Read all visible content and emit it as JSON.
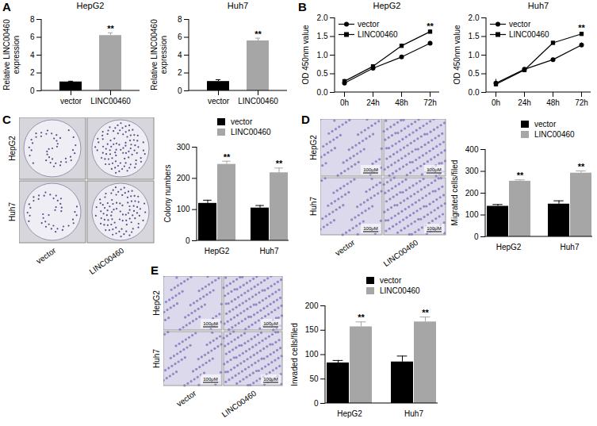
{
  "chart_data": [
    {
      "panel": "A",
      "type": "bar",
      "title": "HepG2",
      "y_label": "Relative LINC00460 expression",
      "categories": [
        "vector",
        "LINC00460"
      ],
      "values": [
        1.0,
        6.2
      ],
      "errors": [
        0.08,
        0.3
      ],
      "colors": [
        "#000000",
        "#a6a6a6"
      ],
      "ylim": [
        0,
        8
      ],
      "yticks": [
        0,
        2,
        4,
        6,
        8
      ],
      "annotations": [
        {
          "category": "LINC00460",
          "text": "**"
        }
      ]
    },
    {
      "panel": "A",
      "type": "bar",
      "title": "Huh7",
      "y_label": "Relative LINC00460 expression",
      "categories": [
        "vector",
        "LINC00460"
      ],
      "values": [
        1.05,
        5.6
      ],
      "errors": [
        0.2,
        0.3
      ],
      "colors": [
        "#000000",
        "#a6a6a6"
      ],
      "ylim": [
        0,
        8
      ],
      "yticks": [
        0,
        2,
        4,
        6,
        8
      ],
      "annotations": [
        {
          "category": "LINC00460",
          "text": "**"
        }
      ]
    },
    {
      "panel": "B",
      "type": "line",
      "title": "HepG2",
      "y_label": "OD 450nm value",
      "categories": [
        "0h",
        "24h",
        "48h",
        "72h"
      ],
      "series": [
        {
          "name": "vector",
          "color": "#000000",
          "marker": "circle",
          "values": [
            0.25,
            0.65,
            0.95,
            1.32
          ],
          "errors": [
            0.06,
            0.03,
            0.05,
            0.05
          ]
        },
        {
          "name": "LINC00460",
          "color": "#000000",
          "marker": "square",
          "values": [
            0.3,
            0.7,
            1.25,
            1.63
          ],
          "errors": [
            0.05,
            0.03,
            0.05,
            0.04
          ]
        }
      ],
      "ylim": [
        0,
        2
      ],
      "yticks": [
        {
          "value": 0,
          "label": "0.0"
        },
        {
          "value": 0.5,
          "label": "0.5"
        },
        {
          "value": 1,
          "label": "1.0"
        },
        {
          "value": 1.5,
          "label": "1.5"
        },
        {
          "value": 2,
          "label": "2.0"
        }
      ],
      "legend": "top-left",
      "annotations": [
        {
          "category": "72h",
          "text": "**"
        }
      ]
    },
    {
      "panel": "B",
      "type": "line",
      "title": "Huh7",
      "y_label": "OD 450nm value",
      "categories": [
        "0h",
        "24h",
        "48h",
        "72h"
      ],
      "series": [
        {
          "name": "vector",
          "color": "#000000",
          "marker": "circle",
          "values": [
            0.25,
            0.62,
            0.88,
            1.27
          ],
          "errors": [
            0.1,
            0.03,
            0.04,
            0.06
          ]
        },
        {
          "name": "LINC00460",
          "color": "#000000",
          "marker": "square",
          "values": [
            0.22,
            0.6,
            1.33,
            1.57
          ],
          "errors": [
            0.05,
            0.03,
            0.04,
            0.04
          ]
        }
      ],
      "ylim": [
        0,
        2
      ],
      "yticks": [
        {
          "value": 0,
          "label": "0.0"
        },
        {
          "value": 0.5,
          "label": "0.5"
        },
        {
          "value": 1,
          "label": "1.0"
        },
        {
          "value": 1.5,
          "label": "1.5"
        },
        {
          "value": 2,
          "label": "2.0"
        }
      ],
      "legend": "top-left",
      "annotations": [
        {
          "category": "72h",
          "text": "**"
        }
      ]
    },
    {
      "panel": "C",
      "type": "bar",
      "y_label": "Colony numbers",
      "categories": [
        "HepG2",
        "Huh7"
      ],
      "series": [
        {
          "name": "vector",
          "color": "#000000",
          "values": [
            120,
            105
          ],
          "errors": [
            10,
            8
          ]
        },
        {
          "name": "LINC00460",
          "color": "#a6a6a6",
          "values": [
            245,
            218
          ],
          "errors": [
            10,
            15
          ]
        }
      ],
      "ylim": [
        0,
        300
      ],
      "yticks": [
        0,
        100,
        200,
        300
      ],
      "legend": "top-right",
      "annotations": [
        {
          "category": "HepG2",
          "series": "LINC00460",
          "text": "**"
        },
        {
          "category": "Huh7",
          "series": "LINC00460",
          "text": "**"
        }
      ]
    },
    {
      "panel": "D",
      "type": "bar",
      "y_label": "Migrated cells/filed",
      "categories": [
        "HepG2",
        "Huh7"
      ],
      "series": [
        {
          "name": "vector",
          "color": "#000000",
          "values": [
            140,
            150
          ],
          "errors": [
            8,
            15
          ]
        },
        {
          "name": "LINC00460",
          "color": "#a6a6a6",
          "values": [
            255,
            292
          ],
          "errors": [
            6,
            10
          ]
        }
      ],
      "ylim": [
        0,
        400
      ],
      "yticks": [
        0,
        100,
        200,
        300,
        400
      ],
      "legend": "top-right",
      "annotations": [
        {
          "category": "HepG2",
          "series": "LINC00460",
          "text": "**"
        },
        {
          "category": "Huh7",
          "series": "LINC00460",
          "text": "**"
        }
      ]
    },
    {
      "panel": "E",
      "type": "bar",
      "y_label": "Invaded cells/filed",
      "categories": [
        "HepG2",
        "Huh7"
      ],
      "series": [
        {
          "name": "vector",
          "color": "#000000",
          "values": [
            83,
            85
          ],
          "errors": [
            5,
            12
          ]
        },
        {
          "name": "LINC00460",
          "color": "#a6a6a6",
          "values": [
            157,
            167
          ],
          "errors": [
            10,
            10
          ]
        }
      ],
      "ylim": [
        0,
        200
      ],
      "yticks": [
        0,
        50,
        100,
        150,
        200
      ],
      "legend": "top-right",
      "annotations": [
        {
          "category": "HepG2",
          "series": "LINC00460",
          "text": "**"
        },
        {
          "category": "Huh7",
          "series": "LINC00460",
          "text": "**"
        }
      ]
    }
  ],
  "images": [
    {
      "panel": "C",
      "rows": [
        "HepG2",
        "Huh7"
      ],
      "columns": [
        "vector",
        "LINC00460"
      ]
    },
    {
      "panel": "D",
      "rows": [
        "HepG2",
        "Huh7"
      ],
      "columns": [
        "vector",
        "LINC00460"
      ],
      "scale_bar": "100μM"
    },
    {
      "panel": "E",
      "rows": [
        "HepG2",
        "Huh7"
      ],
      "columns": [
        "vector",
        "LINC00460"
      ],
      "scale_bar": "100μM"
    }
  ]
}
